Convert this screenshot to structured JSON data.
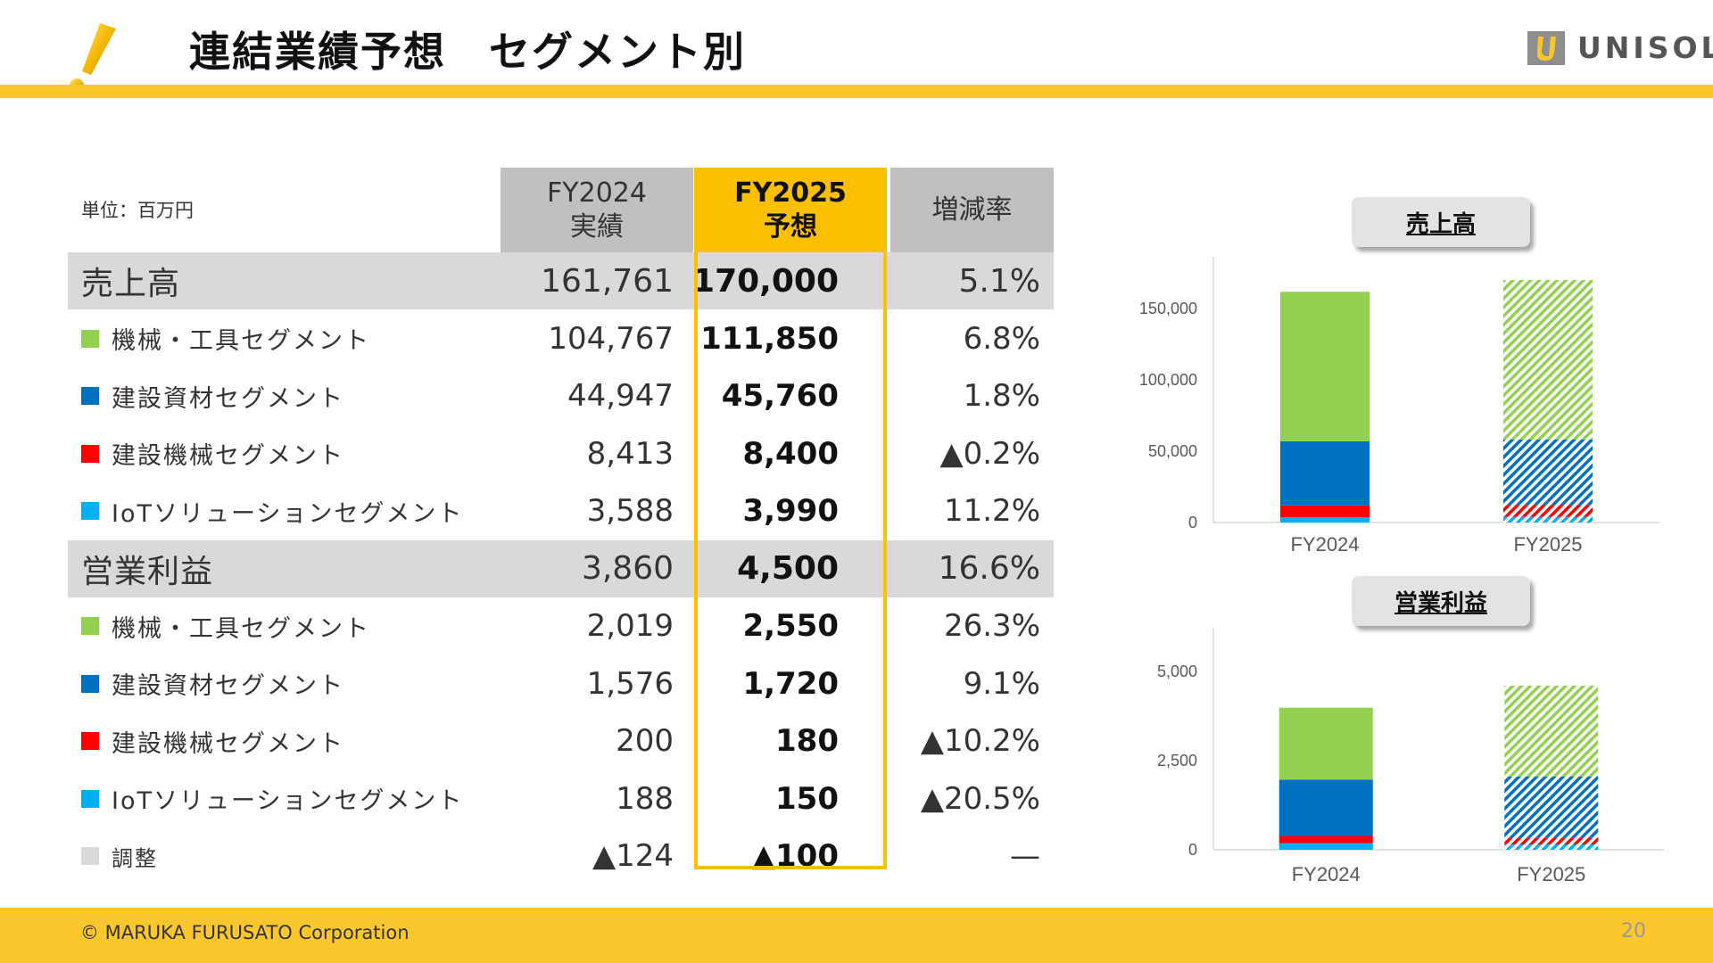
{
  "header": {
    "title": "連結業績予想　セグメント別",
    "logo_text": "UNISOL"
  },
  "table": {
    "unit": "単位：百万円",
    "col_fy2024": [
      "FY2024",
      "実績"
    ],
    "col_fy2025": [
      "FY2025",
      "予想"
    ],
    "col_change": "増減率",
    "rows": [
      {
        "label": "売上高",
        "fy2024": "161,761",
        "fy2025": "170,000",
        "change": "5.1%",
        "kind": "sum"
      },
      {
        "label": "機械・工具セグメント",
        "fy2024": "104,767",
        "fy2025": "111,850",
        "change": "6.8%",
        "swatch": "#92d050"
      },
      {
        "label": "建設資材セグメント",
        "fy2024": "44,947",
        "fy2025": "45,760",
        "change": "1.8%",
        "swatch": "#0070c0"
      },
      {
        "label": "建設機械セグメント",
        "fy2024": "8,413",
        "fy2025": "8,400",
        "change": "▲0.2%",
        "swatch": "#ff0000"
      },
      {
        "label": "IoTソリューションセグメント",
        "fy2024": "3,588",
        "fy2025": "3,990",
        "change": "11.2%",
        "swatch": "#00b0f0"
      },
      {
        "label": "営業利益",
        "fy2024": "3,860",
        "fy2025": "4,500",
        "change": "16.6%",
        "kind": "sum"
      },
      {
        "label": "機械・工具セグメント",
        "fy2024": "2,019",
        "fy2025": "2,550",
        "change": "26.3%",
        "swatch": "#92d050"
      },
      {
        "label": "建設資材セグメント",
        "fy2024": "1,576",
        "fy2025": "1,720",
        "change": "9.1%",
        "swatch": "#0070c0"
      },
      {
        "label": "建設機械セグメント",
        "fy2024": "200",
        "fy2025": "180",
        "change": "▲10.2%",
        "swatch": "#ff0000"
      },
      {
        "label": "IoTソリューションセグメント",
        "fy2024": "188",
        "fy2025": "150",
        "change": "▲20.5%",
        "swatch": "#00b0f0"
      },
      {
        "label": "調整",
        "fy2024": "▲124",
        "fy2025": "▲100",
        "change": "—",
        "swatch": "#d9d9d9",
        "kind": "adj"
      }
    ]
  },
  "colors": {
    "tools": "#92d050",
    "materials": "#0070c0",
    "machinery": "#ff0000",
    "iot": "#00b0f0",
    "accent": "#fcc000"
  },
  "chart_data": [
    {
      "type": "bar",
      "stacked": true,
      "title": "売上高",
      "categories": [
        "FY2024",
        "FY2025"
      ],
      "series": [
        {
          "name": "IoTソリューションセグメント",
          "values": [
            3588,
            3990
          ],
          "color": "#00b0f0"
        },
        {
          "name": "建設機械セグメント",
          "values": [
            8413,
            8400
          ],
          "color": "#ff0000"
        },
        {
          "name": "建設資材セグメント",
          "values": [
            44947,
            45760
          ],
          "color": "#0070c0"
        },
        {
          "name": "機械・工具セグメント",
          "values": [
            104767,
            111850
          ],
          "color": "#92d050"
        }
      ],
      "hatched_categories": [
        "FY2025"
      ],
      "yticks": [
        0,
        50000,
        100000,
        150000
      ],
      "ytick_labels": [
        "0",
        "50,000",
        "100,000",
        "150,000"
      ],
      "ylim": [
        0,
        180000
      ]
    },
    {
      "type": "bar",
      "stacked": true,
      "title": "営業利益",
      "categories": [
        "FY2024",
        "FY2025"
      ],
      "series": [
        {
          "name": "IoTソリューションセグメント",
          "values": [
            188,
            150
          ],
          "color": "#00b0f0"
        },
        {
          "name": "建設機械セグメント",
          "values": [
            200,
            180
          ],
          "color": "#ff0000"
        },
        {
          "name": "建設資材セグメント",
          "values": [
            1576,
            1720
          ],
          "color": "#0070c0"
        },
        {
          "name": "機械・工具セグメント",
          "values": [
            2019,
            2550
          ],
          "color": "#92d050"
        }
      ],
      "hatched_categories": [
        "FY2025"
      ],
      "yticks": [
        0,
        2500,
        5000
      ],
      "ytick_labels": [
        "0",
        "2,500",
        "5,000"
      ],
      "ylim": [
        0,
        6000
      ]
    }
  ],
  "footer": {
    "copyright": "© MARUKA FURUSATO Corporation",
    "page": "20"
  }
}
